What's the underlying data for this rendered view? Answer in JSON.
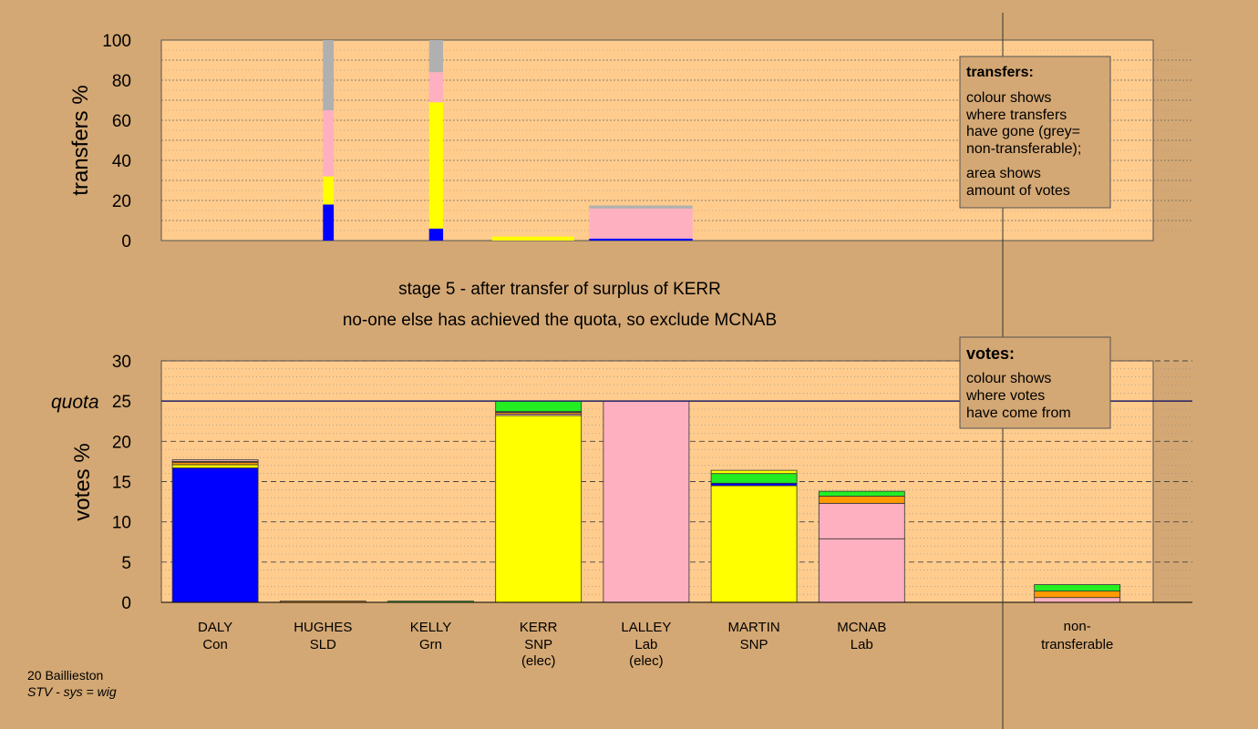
{
  "colors": {
    "background": "#d4a874",
    "plot_bg": "#ffcc8e",
    "Con": "#0000ff",
    "SNP": "#ffff00",
    "Lab": "#ffb0c0",
    "Grn": "#22ee22",
    "SLD": "#ff9900",
    "nontransferable": "#b0b0b0"
  },
  "stage": {
    "line1": "stage 5 - after transfer of surplus of KERR",
    "line2": "no-one else has achieved the quota, so exclude MCNAB"
  },
  "footer": {
    "line1": "20 Baillieston",
    "line2": "STV - sys = wig"
  },
  "legend_transfers": {
    "title": "transfers:",
    "lines": [
      "colour shows",
      "where transfers",
      "have gone (grey=",
      "non-transferable);",
      "area shows",
      "amount of votes"
    ]
  },
  "legend_votes": {
    "title": "votes:",
    "lines": [
      "colour shows",
      "where votes",
      "have come from"
    ]
  },
  "chart_data": [
    {
      "type": "bar",
      "ylabel": "transfers %",
      "ylim": [
        0,
        100
      ],
      "yticks": [
        0,
        20,
        40,
        60,
        80,
        100
      ],
      "bars": [
        {
          "index": 1.55,
          "width": 0.1,
          "segments": [
            {
              "party": "Con",
              "value": 18
            },
            {
              "party": "SNP",
              "value": 14
            },
            {
              "party": "Lab",
              "value": 33
            },
            {
              "party": "nontransferable",
              "value": 35
            }
          ]
        },
        {
          "index": 2.55,
          "width": 0.13,
          "segments": [
            {
              "party": "Con",
              "value": 6
            },
            {
              "party": "SNP",
              "value": 63
            },
            {
              "party": "Lab",
              "value": 15
            },
            {
              "party": "nontransferable",
              "value": 16
            }
          ]
        },
        {
          "index": 3.45,
          "width": 0.76,
          "segments": [
            {
              "party": "SNP",
              "value": 2
            }
          ]
        },
        {
          "index": 4.45,
          "width": 0.96,
          "segments": [
            {
              "party": "Con",
              "value": 1
            },
            {
              "party": "Lab",
              "value": 15
            },
            {
              "party": "nontransferable",
              "value": 1.5
            }
          ]
        }
      ]
    },
    {
      "type": "bar",
      "ylabel": "votes %",
      "ylim": [
        0,
        30
      ],
      "yticks": [
        0,
        5,
        10,
        15,
        20,
        25,
        30
      ],
      "quota": 25,
      "quota_label": "quota",
      "candidates": [
        {
          "name": "DALY",
          "party_label": "Con",
          "elected": ""
        },
        {
          "name": "HUGHES",
          "party_label": "SLD",
          "elected": ""
        },
        {
          "name": "KELLY",
          "party_label": "Grn",
          "elected": ""
        },
        {
          "name": "KERR",
          "party_label": "SNP",
          "elected": "(elec)"
        },
        {
          "name": "LALLEY",
          "party_label": "Lab",
          "elected": "(elec)"
        },
        {
          "name": "MARTIN",
          "party_label": "SNP",
          "elected": ""
        },
        {
          "name": "MCNAB",
          "party_label": "Lab",
          "elected": ""
        }
      ],
      "nontransferable_label": [
        "non-",
        "transferable"
      ],
      "stacks": [
        [
          {
            "party": "Con",
            "value": 16.7
          },
          {
            "party": "SNP",
            "value": 0.4
          },
          {
            "party": "SLD",
            "value": 0.3
          },
          {
            "party": "Grn",
            "value": 0.1
          },
          {
            "party": "Lab",
            "value": 0.2
          }
        ],
        [
          {
            "party": "SLD",
            "value": 0.15
          }
        ],
        [
          {
            "party": "Grn",
            "value": 0.15
          }
        ],
        [
          {
            "party": "SNP",
            "value": 23.2
          },
          {
            "party": "Lab",
            "value": 0.2
          },
          {
            "party": "SLD",
            "value": 0.2
          },
          {
            "party": "Con",
            "value": 0.1
          },
          {
            "party": "Grn",
            "value": 1.3
          }
        ],
        [
          {
            "party": "Lab",
            "value": 25
          }
        ],
        [
          {
            "party": "SNP",
            "value": 14.5
          },
          {
            "party": "Con",
            "value": 0.3
          },
          {
            "party": "Grn",
            "value": 1.2
          },
          {
            "party": "SNP",
            "value": 0.4
          }
        ],
        [
          {
            "party": "Lab",
            "value": 7.9
          },
          {
            "party": "Lab",
            "value": 4.4
          },
          {
            "party": "SLD",
            "value": 0.9
          },
          {
            "party": "Grn",
            "value": 0.6
          }
        ],
        [],
        [
          {
            "party": "Lab",
            "value": 0.6
          },
          {
            "party": "SLD",
            "value": 0.8
          },
          {
            "party": "Grn",
            "value": 0.8
          }
        ]
      ]
    }
  ]
}
